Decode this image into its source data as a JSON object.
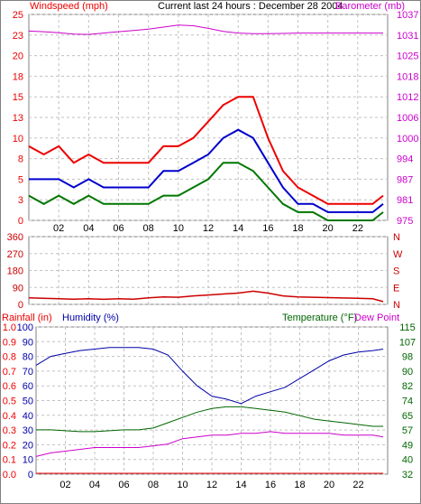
{
  "colors": {
    "wind": "#ee0000",
    "wind_mid": "#0000cc",
    "wind_low": "#007700",
    "barometer": "#cc00cc",
    "direction": "#cc0000",
    "humidity": "#0000aa",
    "temperature": "#006600",
    "dewpoint": "#cc00cc",
    "rain": "#ee0000",
    "grid": "#c0c0c0",
    "frame": "#808080"
  },
  "header": {
    "title": "Current last 24 hours : December 28 2004"
  },
  "chart_data": [
    {
      "type": "line",
      "id": "wind",
      "labels": {
        "left": "Windspeed (mph)",
        "right": "Barometer (mb)"
      },
      "x_ticks": [
        "02",
        "04",
        "06",
        "08",
        "10",
        "12",
        "14",
        "16",
        "18",
        "20",
        "22"
      ],
      "x_range": [
        0,
        24
      ],
      "y_left_ticks": [
        "0",
        "3",
        "5",
        "8",
        "10",
        "13",
        "15",
        "18",
        "20",
        "23",
        "25"
      ],
      "y_left_range": [
        0,
        25
      ],
      "y_right_ticks": [
        "975",
        "981",
        "987",
        "994",
        "1000",
        "1006",
        "1012",
        "1018",
        "1025",
        "1031",
        "1037"
      ],
      "y_right_range": [
        975,
        1037
      ],
      "grid": true,
      "series": [
        {
          "role": "gust",
          "x": [
            0,
            1,
            2,
            3,
            4,
            5,
            6,
            7,
            8,
            9,
            10,
            11,
            12,
            13,
            14,
            15,
            16,
            17,
            18,
            19,
            20,
            21,
            22,
            23,
            23.7
          ],
          "y": [
            9,
            8,
            9,
            7,
            8,
            7,
            7,
            7,
            7,
            9,
            9,
            10,
            12,
            14,
            15,
            15,
            10,
            6,
            4,
            3,
            2,
            2,
            2,
            2,
            3
          ]
        },
        {
          "role": "avg",
          "x": [
            0,
            1,
            2,
            3,
            4,
            5,
            6,
            7,
            8,
            9,
            10,
            11,
            12,
            13,
            14,
            15,
            16,
            17,
            18,
            19,
            20,
            21,
            22,
            23,
            23.7
          ],
          "y": [
            5,
            5,
            5,
            4,
            5,
            4,
            4,
            4,
            4,
            6,
            6,
            7,
            8,
            10,
            11,
            10,
            7,
            4,
            2,
            2,
            1,
            1,
            1,
            1,
            2
          ]
        },
        {
          "role": "lull",
          "x": [
            0,
            1,
            2,
            3,
            4,
            5,
            6,
            7,
            8,
            9,
            10,
            11,
            12,
            13,
            14,
            15,
            16,
            17,
            18,
            19,
            20,
            21,
            22,
            23,
            23.7
          ],
          "y": [
            3,
            2,
            3,
            2,
            3,
            2,
            2,
            2,
            2,
            3,
            3,
            4,
            5,
            7,
            7,
            6,
            4,
            2,
            1,
            1,
            0,
            0,
            0,
            0,
            1
          ]
        },
        {
          "role": "barometer",
          "x": [
            0,
            1,
            2,
            3,
            4,
            5,
            6,
            7,
            8,
            9,
            10,
            11,
            12,
            13,
            14,
            15,
            16,
            17,
            18,
            19,
            20,
            21,
            22,
            23,
            23.7
          ],
          "y": [
            1032,
            1031.8,
            1031.5,
            1031.1,
            1031,
            1031.4,
            1031.8,
            1032.2,
            1032.6,
            1033.2,
            1033.8,
            1033.6,
            1032.8,
            1031.9,
            1031.4,
            1031.2,
            1031.2,
            1031.3,
            1031.4,
            1031.4,
            1031.4,
            1031.4,
            1031.4,
            1031.4,
            1031.4
          ]
        }
      ]
    },
    {
      "type": "line",
      "id": "direction",
      "y_left_ticks": [
        "0",
        "90",
        "180",
        "270",
        "360"
      ],
      "y_left_range": [
        0,
        360
      ],
      "y_right_ticks": [
        "N",
        "E",
        "S",
        "W",
        "N"
      ],
      "grid": true,
      "series": [
        {
          "role": "direction",
          "x": [
            0,
            1,
            2,
            3,
            4,
            5,
            6,
            7,
            8,
            9,
            10,
            11,
            12,
            13,
            14,
            15,
            16,
            17,
            18,
            19,
            20,
            21,
            22,
            23,
            23.7
          ],
          "y": [
            35,
            32,
            30,
            28,
            30,
            27,
            30,
            28,
            35,
            40,
            38,
            45,
            50,
            55,
            60,
            70,
            60,
            45,
            40,
            38,
            36,
            34,
            32,
            30,
            15
          ]
        }
      ]
    },
    {
      "type": "line",
      "id": "thermo",
      "labels": {
        "rain": "Rainfall (in)",
        "humidity": "Humidity (%)",
        "temperature": "Temperature (°F)",
        "dewpoint": "Dew Point"
      },
      "x_ticks": [
        "02",
        "04",
        "06",
        "08",
        "10",
        "12",
        "14",
        "16",
        "18",
        "20",
        "22"
      ],
      "x_range": [
        0,
        24
      ],
      "y_rain_ticks": [
        "0.0",
        "0.1",
        "0.2",
        "0.3",
        "0.4",
        "0.5",
        "0.6",
        "0.7",
        "0.8",
        "0.9",
        "1.0"
      ],
      "y_rain_range": [
        0,
        1.0
      ],
      "y_humidity_ticks": [
        "0",
        "10",
        "20",
        "30",
        "40",
        "50",
        "60",
        "70",
        "80",
        "90",
        "100"
      ],
      "y_humidity_range": [
        0,
        100
      ],
      "y_temp_ticks": [
        "32",
        "40",
        "49",
        "57",
        "65",
        "74",
        "82",
        "90",
        "98",
        "107",
        "115"
      ],
      "y_temp_range": [
        32,
        115
      ],
      "grid": true,
      "series": [
        {
          "role": "humidity",
          "name": "Humidity (%)",
          "x": [
            0,
            1,
            2,
            3,
            4,
            5,
            6,
            7,
            8,
            9,
            10,
            11,
            12,
            13,
            14,
            15,
            16,
            17,
            18,
            19,
            20,
            21,
            22,
            23,
            23.7
          ],
          "y": [
            74,
            80,
            82,
            84,
            85,
            86,
            86,
            86,
            85,
            81,
            70,
            60,
            53,
            51,
            48,
            53,
            56,
            59,
            65,
            71,
            77,
            81,
            83,
            84,
            85
          ]
        },
        {
          "role": "temperature",
          "name": "Temperature (°F)",
          "x": [
            0,
            1,
            2,
            3,
            4,
            5,
            6,
            7,
            8,
            9,
            10,
            11,
            12,
            13,
            14,
            15,
            16,
            17,
            18,
            19,
            20,
            21,
            22,
            23,
            23.7
          ],
          "y": [
            57,
            57,
            56.5,
            56,
            56,
            56.5,
            57,
            57,
            58,
            61,
            64,
            67,
            69,
            70,
            70,
            69,
            68,
            67,
            65,
            63,
            62,
            61,
            60,
            59,
            59
          ]
        },
        {
          "role": "dewpoint",
          "name": "Dew Point",
          "x": [
            0,
            1,
            2,
            3,
            4,
            5,
            6,
            7,
            8,
            9,
            10,
            11,
            12,
            13,
            14,
            15,
            16,
            17,
            18,
            19,
            20,
            21,
            22,
            23,
            23.7
          ],
          "y": [
            42,
            44,
            45,
            46,
            47,
            47,
            47,
            47,
            48,
            49,
            52,
            53,
            54,
            54,
            55,
            55,
            56,
            55,
            55,
            55,
            55,
            54,
            54,
            54,
            53
          ]
        },
        {
          "role": "rain",
          "name": "Rainfall (in)",
          "x": [
            0,
            23.7
          ],
          "y": [
            0,
            0
          ]
        }
      ]
    }
  ]
}
